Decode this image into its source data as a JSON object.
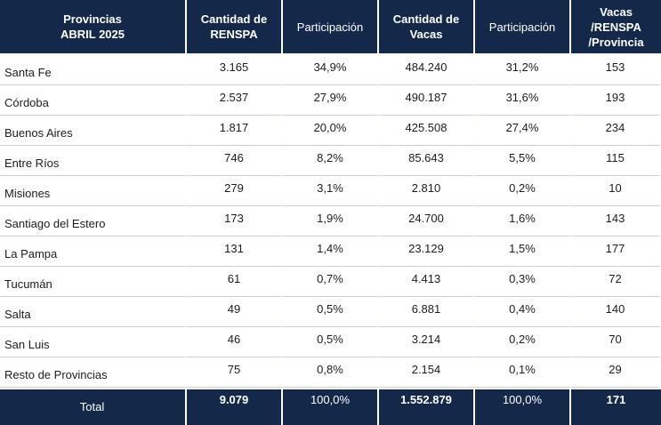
{
  "header": {
    "col0": [
      "Provincias",
      "ABRIL 2025"
    ],
    "col1": [
      "Cantidad de",
      "RENSPA"
    ],
    "col2": [
      "Participación"
    ],
    "col3": [
      "Cantidad de",
      "Vacas"
    ],
    "col4": [
      "Participación"
    ],
    "col5": [
      "Vacas /RENSPA",
      "/Provincia"
    ]
  },
  "rows": [
    {
      "provincia": "Santa Fe",
      "renspa": "3.165",
      "part_renspa": "34,9%",
      "vacas": "484.240",
      "part_vacas": "31,2%",
      "ratio": "153"
    },
    {
      "provincia": "Córdoba",
      "renspa": "2.537",
      "part_renspa": "27,9%",
      "vacas": "490.187",
      "part_vacas": "31,6%",
      "ratio": "193"
    },
    {
      "provincia": "Buenos Aires",
      "renspa": "1.817",
      "part_renspa": "20,0%",
      "vacas": "425.508",
      "part_vacas": "27,4%",
      "ratio": "234"
    },
    {
      "provincia": "Entre Ríos",
      "renspa": "746",
      "part_renspa": "8,2%",
      "vacas": "85.643",
      "part_vacas": "5,5%",
      "ratio": "115"
    },
    {
      "provincia": "Misiones",
      "renspa": "279",
      "part_renspa": "3,1%",
      "vacas": "2.810",
      "part_vacas": "0,2%",
      "ratio": "10"
    },
    {
      "provincia": "Santiago del Estero",
      "renspa": "173",
      "part_renspa": "1,9%",
      "vacas": "24.700",
      "part_vacas": "1,6%",
      "ratio": "143"
    },
    {
      "provincia": "La Pampa",
      "renspa": "131",
      "part_renspa": "1,4%",
      "vacas": "23.129",
      "part_vacas": "1,5%",
      "ratio": "177"
    },
    {
      "provincia": "Tucumán",
      "renspa": "61",
      "part_renspa": "0,7%",
      "vacas": "4.413",
      "part_vacas": "0,3%",
      "ratio": "72"
    },
    {
      "provincia": "Salta",
      "renspa": "49",
      "part_renspa": "0,5%",
      "vacas": "6.881",
      "part_vacas": "0,4%",
      "ratio": "140"
    },
    {
      "provincia": "San Luis",
      "renspa": "46",
      "part_renspa": "0,5%",
      "vacas": "3.214",
      "part_vacas": "0,2%",
      "ratio": "70"
    },
    {
      "provincia": "Resto de Provincias",
      "renspa": "75",
      "part_renspa": "0,8%",
      "vacas": "2.154",
      "part_vacas": "0,1%",
      "ratio": "29"
    }
  ],
  "total": {
    "label": "Total",
    "renspa": "9.079",
    "part_renspa": "100,0%",
    "vacas": "1.552.879",
    "part_vacas": "100,0%",
    "ratio": "171"
  },
  "colors": {
    "header_bg": "#14284a",
    "row_divider": "#c9d0de"
  }
}
